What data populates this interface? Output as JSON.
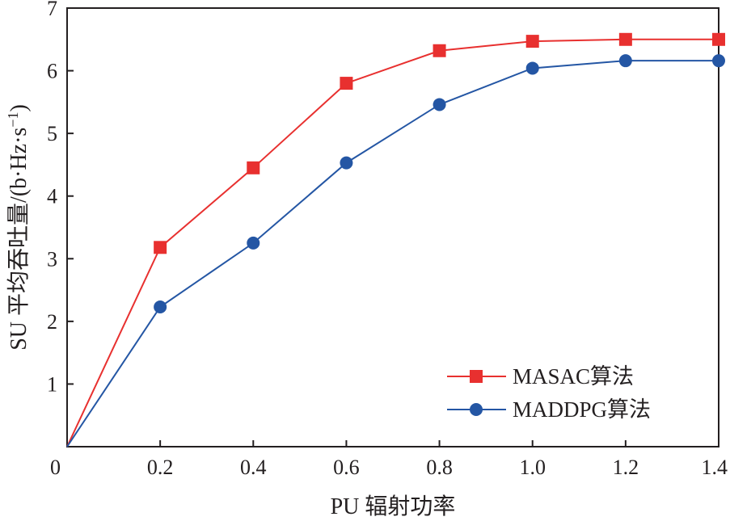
{
  "chart_data": {
    "type": "line",
    "x": [
      0,
      0.2,
      0.4,
      0.6,
      0.8,
      1.0,
      1.2,
      1.4
    ],
    "x_tick_labels": [
      "0",
      "0.2",
      "0.4",
      "0.6",
      "0.8",
      "1.0",
      "1.2",
      "1.4"
    ],
    "y_tick_labels": [
      "1",
      "2",
      "3",
      "4",
      "5",
      "6",
      "7"
    ],
    "xlim": [
      0,
      1.4
    ],
    "ylim": [
      0,
      7
    ],
    "xlabel": "PU 辐射功率",
    "ylabel_main": "SU 平均吞吐量/(b·Hz·s",
    "ylabel_exp": "−1",
    "ylabel_close": ")",
    "grid": false,
    "legend_position": "bottom-right",
    "series": [
      {
        "name": "MASAC算法",
        "color": "#e8302f",
        "marker": "square",
        "values": [
          0,
          3.18,
          4.45,
          5.8,
          6.32,
          6.47,
          6.5,
          6.5
        ]
      },
      {
        "name": "MADDPG算法",
        "color": "#2456a4",
        "marker": "circle",
        "values": [
          0,
          2.23,
          3.25,
          4.53,
          5.46,
          6.04,
          6.16,
          6.16
        ]
      }
    ]
  }
}
